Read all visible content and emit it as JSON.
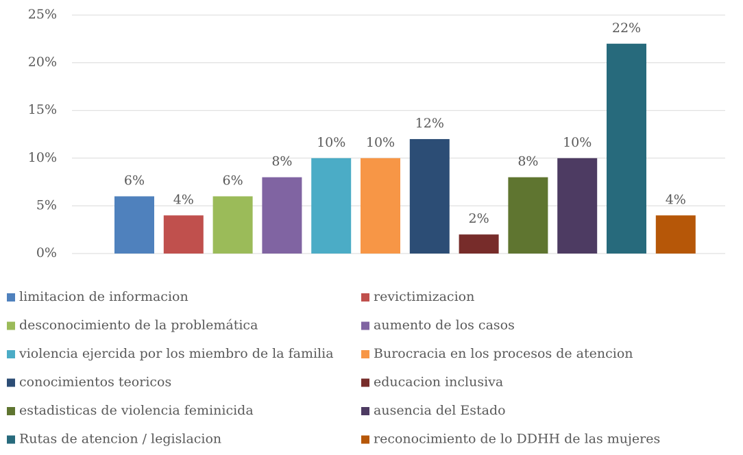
{
  "chart_data": {
    "type": "bar",
    "ylim": [
      0,
      25
    ],
    "yticks": [
      {
        "value": 0,
        "label": "0%"
      },
      {
        "value": 5,
        "label": "5%"
      },
      {
        "value": 10,
        "label": "10%"
      },
      {
        "value": 15,
        "label": "15%"
      },
      {
        "value": 20,
        "label": "20%"
      },
      {
        "value": 25,
        "label": "25%"
      }
    ],
    "grid": true,
    "legend": "bottom",
    "series": [
      {
        "name": "limitacion de informacion",
        "color": "#4f81bd",
        "values": [
          6
        ],
        "value_labels": [
          "6%"
        ]
      },
      {
        "name": "revictimizacion",
        "color": "#c0504d",
        "values": [
          4
        ],
        "value_labels": [
          "4%"
        ]
      },
      {
        "name": "desconocimiento de la problemática",
        "color": "#9bbb59",
        "values": [
          6
        ],
        "value_labels": [
          "6%"
        ]
      },
      {
        "name": "aumento de los casos",
        "color": "#8064a2",
        "values": [
          8
        ],
        "value_labels": [
          "8%"
        ]
      },
      {
        "name": "violencia ejercida por los miembro de la familia",
        "color": "#4bacc6",
        "values": [
          10
        ],
        "value_labels": [
          "10%"
        ]
      },
      {
        "name": "Burocracia en los procesos de atencion",
        "color": "#f79646",
        "values": [
          10
        ],
        "value_labels": [
          "10%"
        ]
      },
      {
        "name": "conocimientos teoricos",
        "color": "#2c4d75",
        "values": [
          12
        ],
        "value_labels": [
          "12%"
        ]
      },
      {
        "name": "educacion inclusiva",
        "color": "#772c2a",
        "values": [
          2
        ],
        "value_labels": [
          "2%"
        ]
      },
      {
        "name": "estadisticas de violencia feminicida",
        "color": "#5f7530",
        "values": [
          8
        ],
        "value_labels": [
          "8%"
        ]
      },
      {
        "name": "ausencia del Estado",
        "color": "#4d3b62",
        "values": [
          10
        ],
        "value_labels": [
          "10%"
        ]
      },
      {
        "name": "Rutas de atencion / legislacion",
        "color": "#276a7c",
        "values": [
          22
        ],
        "value_labels": [
          "22%"
        ]
      },
      {
        "name": "reconocimiento de lo DDHH de las mujeres",
        "color": "#b65708",
        "values": [
          4
        ],
        "value_labels": [
          "4%"
        ]
      }
    ]
  }
}
